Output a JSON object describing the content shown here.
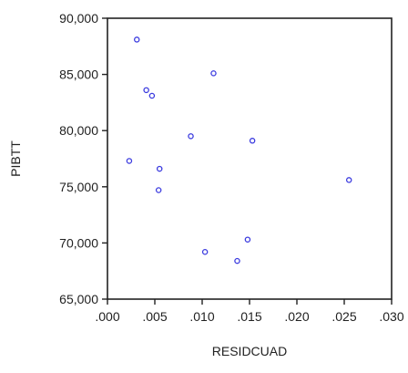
{
  "chart_data": {
    "type": "scatter",
    "title": "",
    "xlabel": "RESIDCUAD",
    "ylabel": "PIBTT",
    "xlim": [
      0.0,
      0.03
    ],
    "ylim": [
      65000,
      90000
    ],
    "x_ticks": [
      0.0,
      0.005,
      0.01,
      0.015,
      0.02,
      0.025,
      0.03
    ],
    "x_tick_labels": [
      ".000",
      ".005",
      ".010",
      ".015",
      ".020",
      ".025",
      ".030"
    ],
    "y_ticks": [
      65000,
      70000,
      75000,
      80000,
      85000,
      90000
    ],
    "y_tick_labels": [
      "65,000",
      "70,000",
      "75,000",
      "80,000",
      "85,000",
      "90,000"
    ],
    "grid": false,
    "legend": "none",
    "marker_color": "#3b3bdf",
    "series": [
      {
        "x": [
          0.0031,
          0.0112,
          0.0041,
          0.0047,
          0.0088,
          0.0153,
          0.0023,
          0.0055,
          0.0054,
          0.0255,
          0.0148,
          0.0103,
          0.0137
        ],
        "y": [
          88100,
          85100,
          83600,
          83100,
          79500,
          79100,
          77300,
          76600,
          74700,
          75600,
          70300,
          69200,
          68400
        ]
      }
    ]
  }
}
